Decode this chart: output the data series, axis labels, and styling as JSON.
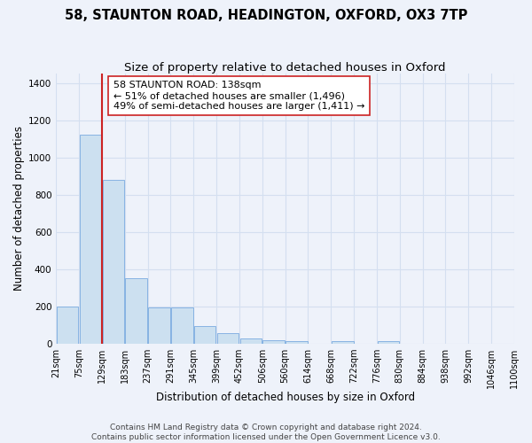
{
  "title": "58, STAUNTON ROAD, HEADINGTON, OXFORD, OX3 7TP",
  "subtitle": "Size of property relative to detached houses in Oxford",
  "xlabel": "Distribution of detached houses by size in Oxford",
  "ylabel": "Number of detached properties",
  "bar_color": "#cce0f0",
  "bar_edge_color": "#7aabe0",
  "grid_color": "#d4dff0",
  "background_color": "#eef2fa",
  "marker_line_color": "#cc2222",
  "marker_bin_index": 2,
  "bin_labels": [
    "21sqm",
    "75sqm",
    "129sqm",
    "183sqm",
    "237sqm",
    "291sqm",
    "345sqm",
    "399sqm",
    "452sqm",
    "506sqm",
    "560sqm",
    "614sqm",
    "668sqm",
    "722sqm",
    "776sqm",
    "830sqm",
    "884sqm",
    "938sqm",
    "992sqm",
    "1046sqm",
    "1100sqm"
  ],
  "bar_heights": [
    200,
    1120,
    880,
    350,
    195,
    195,
    95,
    55,
    25,
    20,
    15,
    0,
    15,
    0,
    15,
    0,
    0,
    0,
    0,
    0
  ],
  "ylim": [
    0,
    1450
  ],
  "yticks": [
    0,
    200,
    400,
    600,
    800,
    1000,
    1200,
    1400
  ],
  "annotation_text": "58 STAUNTON ROAD: 138sqm\n← 51% of detached houses are smaller (1,496)\n49% of semi-detached houses are larger (1,411) →",
  "annotation_box_color": "#ffffff",
  "annotation_box_edge_color": "#cc2222",
  "footer_line1": "Contains HM Land Registry data © Crown copyright and database right 2024.",
  "footer_line2": "Contains public sector information licensed under the Open Government Licence v3.0.",
  "title_fontsize": 10.5,
  "subtitle_fontsize": 9.5,
  "xlabel_fontsize": 8.5,
  "ylabel_fontsize": 8.5,
  "tick_fontsize": 7,
  "annotation_fontsize": 8,
  "footer_fontsize": 6.5
}
